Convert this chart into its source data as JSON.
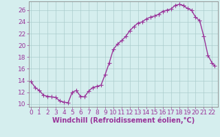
{
  "x": [
    0,
    0.5,
    1,
    1.5,
    2,
    2.5,
    3,
    3.5,
    4,
    4.5,
    5,
    5.5,
    6,
    6.5,
    7,
    7.5,
    8,
    8.5,
    9,
    9.5,
    10,
    10.5,
    11,
    11.5,
    12,
    12.5,
    13,
    13.5,
    14,
    14.5,
    15,
    15.5,
    16,
    16.5,
    17,
    17.5,
    18,
    18.5,
    19,
    19.5,
    20,
    20.5,
    21,
    21.5,
    22,
    22.3
  ],
  "y": [
    13.8,
    12.8,
    12.3,
    11.5,
    11.3,
    11.2,
    11.1,
    10.5,
    10.3,
    10.2,
    12.0,
    12.3,
    11.3,
    11.2,
    12.2,
    12.8,
    13.0,
    13.2,
    15.0,
    17.0,
    19.3,
    20.2,
    20.8,
    21.5,
    22.5,
    23.2,
    23.8,
    24.0,
    24.5,
    24.8,
    25.0,
    25.3,
    25.8,
    26.0,
    26.2,
    26.8,
    27.0,
    26.8,
    26.3,
    26.0,
    24.8,
    24.2,
    21.5,
    18.3,
    17.0,
    16.5
  ],
  "line_color": "#993399",
  "marker_color": "#993399",
  "bg_color": "#d5eeee",
  "grid_color": "#aacccc",
  "xlabel": "Windchill (Refroidissement éolien,°C)",
  "xlabel_color": "#993399",
  "tick_color": "#993399",
  "xlim": [
    -0.3,
    22.7
  ],
  "ylim": [
    9.5,
    27.5
  ],
  "yticks": [
    10,
    12,
    14,
    16,
    18,
    20,
    22,
    24,
    26
  ],
  "xticks": [
    0,
    1,
    2,
    3,
    4,
    5,
    6,
    7,
    8,
    9,
    10,
    11,
    12,
    13,
    14,
    15,
    16,
    17,
    18,
    19,
    20,
    21,
    22
  ],
  "xtick_labels": [
    "0",
    "1",
    "2",
    "3",
    "4",
    "5",
    "6",
    "7",
    "8",
    "9",
    "10",
    "11",
    "12",
    "13",
    "14",
    "15",
    "16",
    "17",
    "18",
    "19",
    "20",
    "21",
    "22"
  ],
  "ytick_labels": [
    "10",
    "12",
    "14",
    "16",
    "18",
    "20",
    "22",
    "24",
    "26"
  ],
  "font_size": 6.5,
  "xlabel_font_size": 7,
  "linewidth": 1.0,
  "markersize": 2.5
}
